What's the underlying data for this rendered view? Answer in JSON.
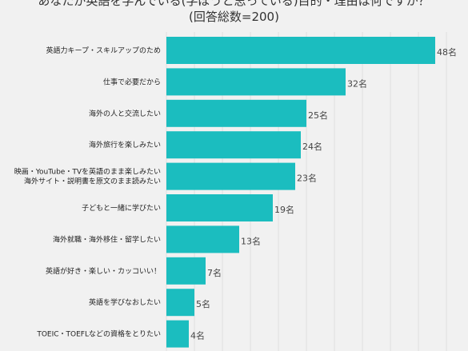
{
  "chart_data": {
    "type": "bar",
    "orientation": "horizontal",
    "title_lines": [
      "あなたが英語を学んでいる(学ぼうと思っている)目的・理由は何ですか？",
      "(回答総数=200)"
    ],
    "categories": [
      "英語力キープ・スキルアップのため",
      "仕事で必要だから",
      "海外の人と交流したい",
      "海外旅行を楽しみたい",
      "映画・YouTube・TVを英語のまま楽しみたい\n海外サイト・説明書を原文のまま読みたい",
      "子どもと一緒に学びたい",
      "海外就職・海外移住・留学したい",
      "英語が好き・楽しい・カッコいい！",
      "英語を学びなおしたい",
      "TOEIC・TOEFLなどの資格をとりたい"
    ],
    "values": [
      48,
      32,
      25,
      24,
      23,
      19,
      13,
      7,
      5,
      4
    ],
    "value_suffix": "名",
    "bar_color": "#1bbdbf",
    "grid": true
  }
}
